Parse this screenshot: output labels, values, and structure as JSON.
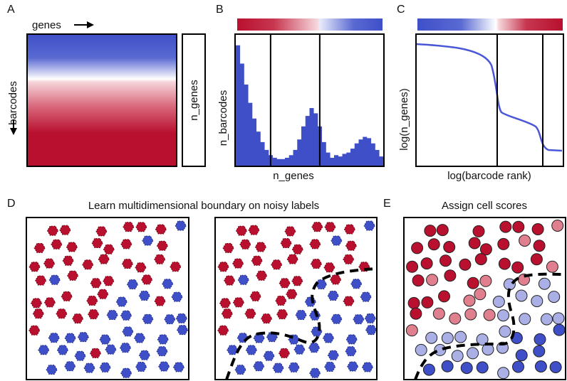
{
  "panel_labels": [
    "A",
    "B",
    "C",
    "D",
    "E"
  ],
  "panel_a": {
    "x_label": "genes",
    "y_label": "barcodes",
    "side_box_label": "n_genes"
  },
  "panel_b": {
    "x_label": "n_genes",
    "y_label": "n_barcodes"
  },
  "panel_c": {
    "x_label": "log(barcode rank)",
    "y_label": "log(n_genes)"
  },
  "panel_d": {
    "title": "Learn multidimensional boundary on noisy labels"
  },
  "panel_e": {
    "title": "Assign cell scores"
  },
  "colors": {
    "red": "#b8102e",
    "pink": "#e0808f",
    "blue": "#3f4fc8",
    "light_blue": "#aab0e6",
    "curve_blue": "#4a57d6",
    "border": "#000000"
  },
  "chart_data": {
    "type": "bar",
    "xlabel": "n_genes",
    "ylabel": "n_barcodes",
    "values": [
      0.92,
      0.78,
      0.62,
      0.48,
      0.36,
      0.26,
      0.18,
      0.12,
      0.08,
      0.06,
      0.05,
      0.05,
      0.06,
      0.08,
      0.12,
      0.2,
      0.3,
      0.38,
      0.44,
      0.4,
      0.3,
      0.18,
      0.1,
      0.06,
      0.08,
      0.07,
      0.09,
      0.1,
      0.13,
      0.17,
      0.2,
      0.22,
      0.21,
      0.17,
      0.12,
      0.07
    ],
    "thresholds_bin_index": [
      8,
      20
    ]
  }
}
